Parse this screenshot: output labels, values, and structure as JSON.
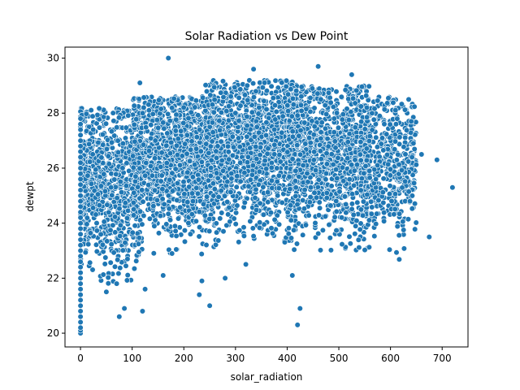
{
  "chart_data": {
    "type": "scatter",
    "title": "Solar Radiation vs Dew Point",
    "xlabel": "solar_radiation",
    "ylabel": "dewpt",
    "xlim": [
      -30,
      750
    ],
    "ylim": [
      19.5,
      30.4
    ],
    "xticks": [
      0,
      100,
      200,
      300,
      400,
      500,
      600,
      700
    ],
    "yticks": [
      20,
      22,
      24,
      26,
      28,
      30
    ],
    "grid": false,
    "legend": "none",
    "marker_color": "#1f77b4",
    "marker_edge_color": "#ffffff",
    "approximate_point_density_note": "",
    "points": [
      [
        0,
        20.0
      ],
      [
        0,
        20.1
      ],
      [
        0,
        20.2
      ],
      [
        0,
        20.4
      ],
      [
        0,
        20.6
      ],
      [
        0,
        20.8
      ],
      [
        0,
        21.0
      ],
      [
        0,
        21.2
      ],
      [
        0,
        21.4
      ],
      [
        0,
        21.6
      ],
      [
        0,
        21.8
      ],
      [
        0,
        22.0
      ],
      [
        0,
        22.2
      ],
      [
        0,
        22.4
      ],
      [
        0,
        22.6
      ],
      [
        0,
        22.8
      ],
      [
        0,
        23.0
      ],
      [
        0,
        23.2
      ],
      [
        0,
        23.4
      ],
      [
        0,
        23.6
      ],
      [
        0,
        23.8
      ],
      [
        0,
        24.0
      ],
      [
        0,
        24.2
      ],
      [
        0,
        24.4
      ],
      [
        0,
        24.6
      ],
      [
        0,
        24.8
      ],
      [
        0,
        25.0
      ],
      [
        0,
        25.2
      ],
      [
        0,
        25.4
      ],
      [
        0,
        25.6
      ],
      [
        0,
        25.8
      ],
      [
        0,
        26.0
      ],
      [
        0,
        26.2
      ],
      [
        0,
        26.4
      ],
      [
        0,
        26.6
      ],
      [
        0,
        26.8
      ],
      [
        0,
        27.0
      ],
      [
        0,
        27.2
      ],
      [
        0,
        27.4
      ],
      [
        0,
        27.6
      ],
      [
        0,
        27.8
      ],
      [
        170,
        30.0
      ],
      [
        115,
        29.1
      ],
      [
        460,
        29.7
      ],
      [
        335,
        29.6
      ],
      [
        525,
        29.4
      ],
      [
        720,
        25.3
      ],
      [
        690,
        26.3
      ],
      [
        675,
        23.5
      ],
      [
        660,
        26.5
      ],
      [
        640,
        27.7
      ],
      [
        75,
        20.6
      ],
      [
        120,
        20.8
      ],
      [
        250,
        21.0
      ],
      [
        420,
        20.3
      ],
      [
        425,
        20.9
      ],
      [
        85,
        20.9
      ],
      [
        230,
        21.4
      ],
      [
        235,
        21.9
      ],
      [
        280,
        22.0
      ],
      [
        320,
        22.5
      ],
      [
        410,
        22.1
      ],
      [
        160,
        22.1
      ],
      [
        50,
        21.5
      ],
      [
        70,
        21.8
      ],
      [
        125,
        21.6
      ]
    ],
    "distribution": {
      "seed": 7,
      "clusters": [
        {
          "n": 900,
          "x": [
            0,
            120
          ],
          "y": [
            21.8,
            28.2
          ],
          "y_mode": 25.5
        },
        {
          "n": 1300,
          "x": [
            100,
            260
          ],
          "y": [
            22.8,
            28.6
          ],
          "y_mode": 26.3
        },
        {
          "n": 1500,
          "x": [
            240,
            420
          ],
          "y": [
            23.2,
            29.2
          ],
          "y_mode": 26.7
        },
        {
          "n": 1200,
          "x": [
            400,
            560
          ],
          "y": [
            23.0,
            29.0
          ],
          "y_mode": 26.5
        },
        {
          "n": 500,
          "x": [
            540,
            650
          ],
          "y": [
            22.6,
            28.6
          ],
          "y_mode": 26.2
        }
      ]
    }
  }
}
